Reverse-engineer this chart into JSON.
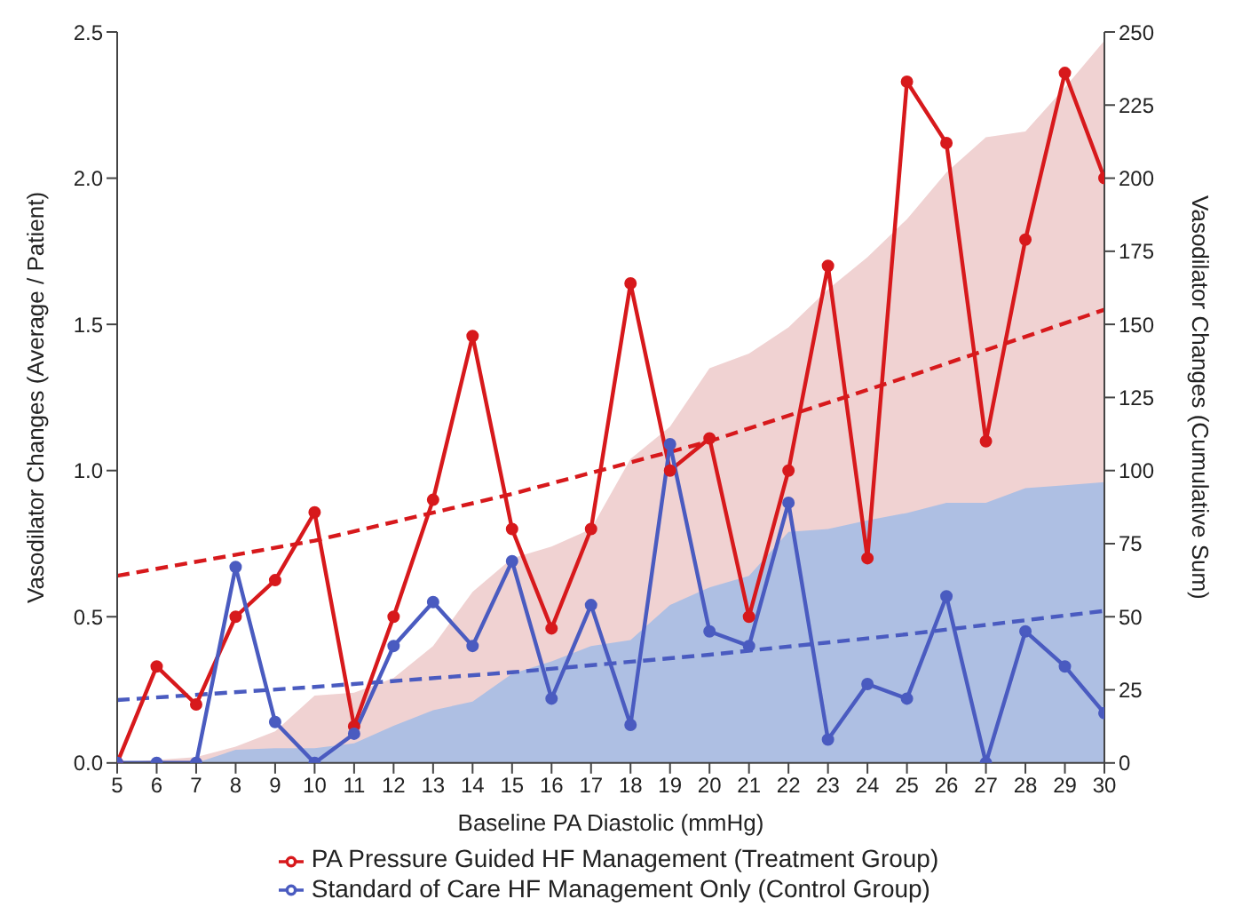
{
  "chart_data": {
    "type": "line",
    "xlabel": "Baseline PA Diastolic (mmHg)",
    "ylabel": "Vasodilator Changes (Average / Patient)",
    "y2label": "Vasodilator Changes (Cumulative Sum)",
    "x": [
      5,
      6,
      7,
      8,
      9,
      10,
      11,
      12,
      13,
      14,
      15,
      16,
      17,
      18,
      19,
      20,
      21,
      22,
      23,
      24,
      25,
      26,
      27,
      28,
      29,
      30
    ],
    "series": [
      {
        "type": "area",
        "axis": "y2",
        "marker": "none",
        "color": "#f0d2d2",
        "values": [
          0,
          1,
          2,
          5.6,
          10.8,
          23,
          24,
          29,
          40,
          58.5,
          70,
          74,
          80,
          104,
          115,
          135,
          140,
          149,
          162,
          173,
          186,
          202,
          214,
          216,
          231,
          247
        ]
      },
      {
        "type": "area",
        "axis": "y2",
        "marker": "none",
        "color": "#aebfe3",
        "values": [
          0,
          0,
          0,
          4.5,
          5,
          5,
          6.7,
          12.7,
          18,
          21,
          30.5,
          34.7,
          40,
          42,
          54,
          60,
          64,
          79,
          80,
          83,
          85.5,
          89,
          89,
          94,
          95,
          96
        ]
      },
      {
        "type": "line",
        "line_style": "dashed",
        "marker": "none",
        "color": "#d7191c",
        "x": [
          5,
          10,
          15,
          20,
          25,
          30
        ],
        "values": [
          0.64,
          0.76,
          0.92,
          1.1,
          1.32,
          1.55
        ]
      },
      {
        "type": "line",
        "line_style": "dashed",
        "marker": "none",
        "color": "#4a5bc0",
        "x": [
          5,
          10,
          15,
          20,
          25,
          30
        ],
        "values": [
          0.215,
          0.26,
          0.31,
          0.37,
          0.44,
          0.52
        ]
      },
      {
        "name": "PA Pressure Guided HF Management (Treatment Group)",
        "color": "#d7191c",
        "values": [
          0,
          0.33,
          0.2,
          0.5,
          0.625,
          0.857,
          0.125,
          0.5,
          0.9,
          1.46,
          0.8,
          0.46,
          0.8,
          1.64,
          1.0,
          1.11,
          0.5,
          1.0,
          1.7,
          0.7,
          2.33,
          2.12,
          1.1,
          1.79,
          2.36,
          2.0
        ]
      },
      {
        "name": "Standard of Care HF Management Only (Control Group)",
        "color": "#4a5bc0",
        "values": [
          0,
          0,
          0,
          0.67,
          0.14,
          0,
          0.1,
          0.4,
          0.55,
          0.4,
          0.69,
          0.22,
          0.54,
          0.13,
          1.09,
          0.45,
          0.4,
          0.89,
          0.08,
          0.27,
          0.22,
          0.57,
          0,
          0.45,
          0.33,
          0.17
        ]
      }
    ],
    "xlim": [
      5,
      30
    ],
    "xticks": [
      5,
      6,
      7,
      8,
      9,
      10,
      11,
      12,
      13,
      14,
      15,
      16,
      17,
      18,
      19,
      20,
      21,
      22,
      23,
      24,
      25,
      26,
      27,
      28,
      29,
      30
    ],
    "ylim": [
      0,
      2.5
    ],
    "yticks": [
      {
        "value": 0,
        "label": "0.0"
      },
      {
        "value": 0.5,
        "label": "0.5"
      },
      {
        "value": 1,
        "label": "1.0"
      },
      {
        "value": 1.5,
        "label": "1.5"
      },
      {
        "value": 2,
        "label": "2.0"
      },
      {
        "value": 2.5,
        "label": "2.5"
      }
    ],
    "y2lim": [
      0,
      250
    ],
    "y2ticks": [
      0,
      25,
      50,
      75,
      100,
      125,
      150,
      175,
      200,
      225,
      250
    ],
    "marker": "circle",
    "grid": false,
    "legend": "bottom"
  }
}
